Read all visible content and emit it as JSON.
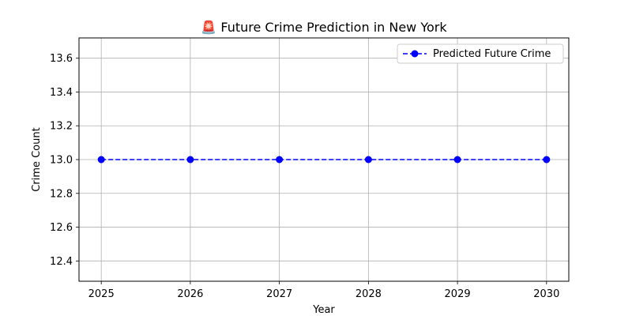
{
  "chart_data": {
    "type": "line",
    "title": "🚨 Future Crime Prediction in New York",
    "xlabel": "Year",
    "ylabel": "Crime Count",
    "x": [
      2025,
      2026,
      2027,
      2028,
      2029,
      2030
    ],
    "series": [
      {
        "name": "Predicted Future Crime",
        "values": [
          13.0,
          13.0,
          13.0,
          13.0,
          13.0,
          13.0
        ],
        "color": "#0000ff",
        "linestyle": "dashed",
        "marker": "circle"
      }
    ],
    "xticks": [
      "2025",
      "2026",
      "2027",
      "2028",
      "2029",
      "2030"
    ],
    "yticks": [
      "12.4",
      "12.6",
      "12.8",
      "13.0",
      "13.2",
      "13.4",
      "13.6"
    ],
    "ylim": [
      12.28,
      13.72
    ],
    "xlim": [
      2024.75,
      2030.25
    ],
    "grid": true,
    "legend_position": "top-right"
  }
}
